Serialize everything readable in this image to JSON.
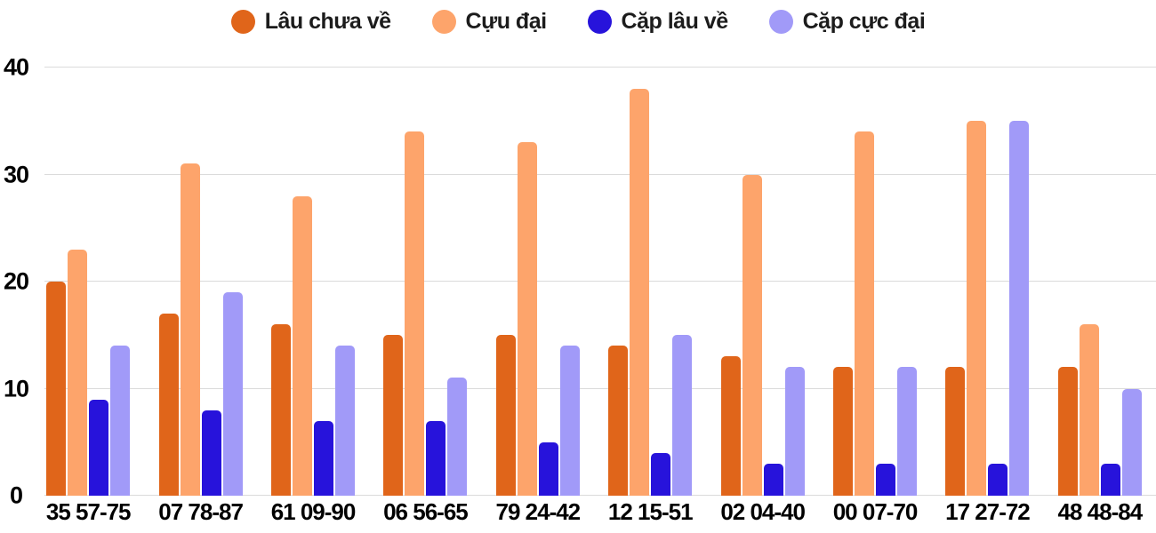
{
  "chart_data": {
    "type": "bar",
    "title": "",
    "xlabel": "",
    "ylabel": "",
    "categories": [
      "35 57-75",
      "07 78-87",
      "61 09-90",
      "06 56-65",
      "79 24-42",
      "12 15-51",
      "02 04-40",
      "00 07-70",
      "17 27-72",
      "48 48-84"
    ],
    "series": [
      {
        "name": "Lâu chưa về",
        "color": "#E0651A",
        "values": [
          20,
          17,
          16,
          15,
          15,
          14,
          13,
          12,
          12,
          12
        ]
      },
      {
        "name": "Cựu đại",
        "color": "#FDA46B",
        "values": [
          23,
          31,
          28,
          34,
          33,
          38,
          30,
          34,
          35,
          16
        ]
      },
      {
        "name": "Cặp lâu về",
        "color": "#2713DB",
        "values": [
          9,
          8,
          7,
          7,
          5,
          4,
          3,
          3,
          3,
          3
        ]
      },
      {
        "name": "Cặp cực đại",
        "color": "#A19AF8",
        "values": [
          14,
          19,
          14,
          11,
          14,
          15,
          12,
          12,
          35,
          10
        ]
      }
    ],
    "ylim": [
      0,
      40
    ],
    "y_ticks": [
      0,
      10,
      20,
      30,
      40
    ],
    "grid": true,
    "legend_position": "top"
  },
  "colors": {
    "gridline": "#DBDBDB",
    "axis_text": "#000000",
    "legend_text": "#1C1C1C",
    "background": "#FFFFFF"
  }
}
